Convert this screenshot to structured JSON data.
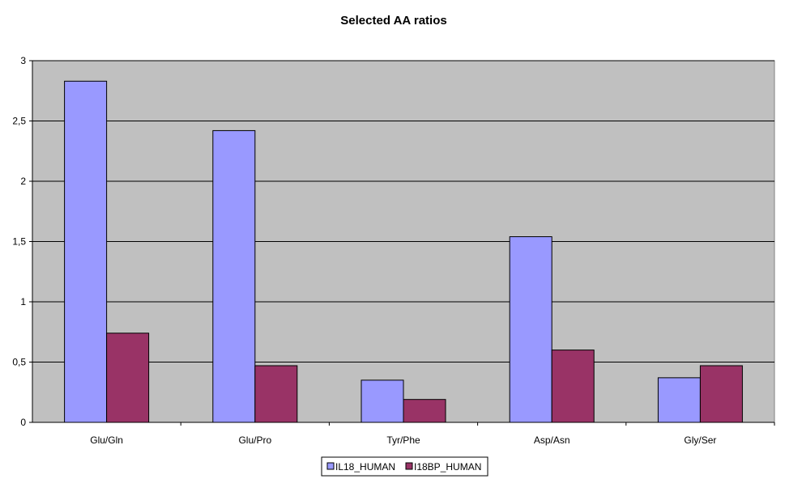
{
  "chart_data": {
    "type": "bar",
    "title": "Selected AA ratios",
    "xlabel": "",
    "ylabel": "",
    "categories": [
      "Glu/Gln",
      "Glu/Pro",
      "Tyr/Phe",
      "Asp/Asn",
      "Gly/Ser"
    ],
    "series": [
      {
        "name": "IL18_HUMAN",
        "color": "#9999ff",
        "values": [
          2.83,
          2.42,
          0.35,
          1.54,
          0.37
        ]
      },
      {
        "name": "I18BP_HUMAN",
        "color": "#993366",
        "values": [
          0.74,
          0.47,
          0.19,
          0.6,
          0.47
        ]
      }
    ],
    "ylim": [
      0,
      3
    ],
    "yticks": [
      "0",
      "0,5",
      "1",
      "1,5",
      "2",
      "2,5",
      "3"
    ],
    "grid": true,
    "legend_position": "bottom-center",
    "plot_background": "#c0c0c0"
  }
}
